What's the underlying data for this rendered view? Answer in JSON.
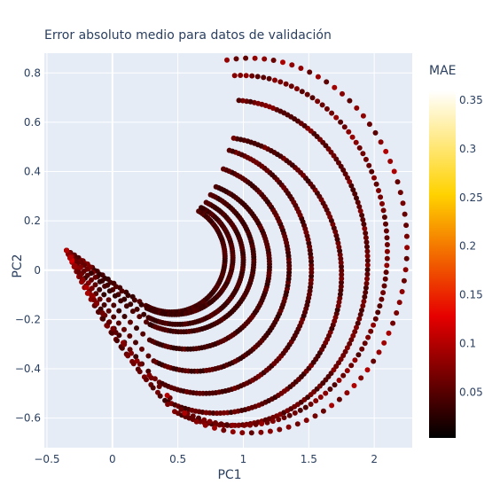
{
  "chart_data": {
    "type": "scatter",
    "title": "Error absoluto medio para datos de validación",
    "xlabel": "PC1",
    "ylabel": "PC2",
    "xlim": [
      -0.52,
      2.29
    ],
    "ylim": [
      -0.72,
      0.88
    ],
    "x_ticks": [
      -0.5,
      0,
      0.5,
      1,
      1.5,
      2
    ],
    "x_tick_labels": [
      "−0.5",
      "0",
      "0.5",
      "1",
      "1.5",
      "2"
    ],
    "y_ticks": [
      -0.6,
      -0.4,
      -0.2,
      0,
      0.2,
      0.4,
      0.6,
      0.8
    ],
    "y_tick_labels": [
      "−0.6",
      "−0.4",
      "−0.2",
      "0",
      "0.2",
      "0.4",
      "0.6",
      "0.8"
    ],
    "grid": true,
    "colorbar": {
      "title": "MAE",
      "range": [
        0.003,
        0.36
      ],
      "ticks": [
        0.05,
        0.1,
        0.15,
        0.2,
        0.25,
        0.3,
        0.35
      ],
      "tick_labels": [
        "0.05",
        "0.1",
        "0.15",
        "0.2",
        "0.25",
        "0.3",
        "0.35"
      ],
      "colorscale": "hot",
      "colors": [
        "#000000",
        "#e60000",
        "#ffd200",
        "#ffffff"
      ]
    },
    "series": [
      {
        "xc": 0.45,
        "yc": 0.05,
        "rx": 0.41,
        "ry": 0.22,
        "end_angle": 205,
        "mae_base": 0.03,
        "mae_var": 0.02,
        "n": 90
      },
      {
        "xc": 0.47,
        "yc": 0.05,
        "rx": 0.45,
        "ry": 0.23,
        "end_angle": 208,
        "mae_base": 0.03,
        "mae_var": 0.02,
        "n": 95
      },
      {
        "xc": 0.5,
        "yc": 0.04,
        "rx": 0.5,
        "ry": 0.26,
        "end_angle": 210,
        "mae_base": 0.03,
        "mae_var": 0.02,
        "n": 100
      },
      {
        "xc": 0.53,
        "yc": 0.04,
        "rx": 0.55,
        "ry": 0.29,
        "end_angle": 212,
        "mae_base": 0.03,
        "mae_var": 0.02,
        "n": 105
      },
      {
        "xc": 0.57,
        "yc": 0.02,
        "rx": 0.63,
        "ry": 0.34,
        "end_angle": 215,
        "mae_base": 0.03,
        "mae_var": 0.025,
        "n": 115
      },
      {
        "xc": 0.63,
        "yc": 0.01,
        "rx": 0.72,
        "ry": 0.42,
        "end_angle": 218,
        "mae_base": 0.03,
        "mae_var": 0.03,
        "n": 125
      },
      {
        "xc": 0.7,
        "yc": 0.0,
        "rx": 0.82,
        "ry": 0.5,
        "end_angle": 222,
        "mae_base": 0.035,
        "mae_var": 0.03,
        "n": 135
      },
      {
        "xc": 0.8,
        "yc": -0.02,
        "rx": 0.95,
        "ry": 0.56,
        "end_angle": 228,
        "mae_base": 0.035,
        "mae_var": 0.035,
        "n": 145
      },
      {
        "xc": 0.9,
        "yc": 0.03,
        "rx": 1.05,
        "ry": 0.66,
        "end_angle": 232,
        "mae_base": 0.04,
        "mae_var": 0.035,
        "n": 150
      },
      {
        "xc": 0.98,
        "yc": 0.08,
        "rx": 1.12,
        "ry": 0.71,
        "end_angle": 238,
        "mae_base": 0.045,
        "mae_var": 0.04,
        "n": 110
      },
      {
        "xc": 1.05,
        "yc": 0.1,
        "rx": 1.2,
        "ry": 0.76,
        "end_angle": 244,
        "mae_base": 0.05,
        "mae_var": 0.05,
        "n": 75
      }
    ]
  }
}
